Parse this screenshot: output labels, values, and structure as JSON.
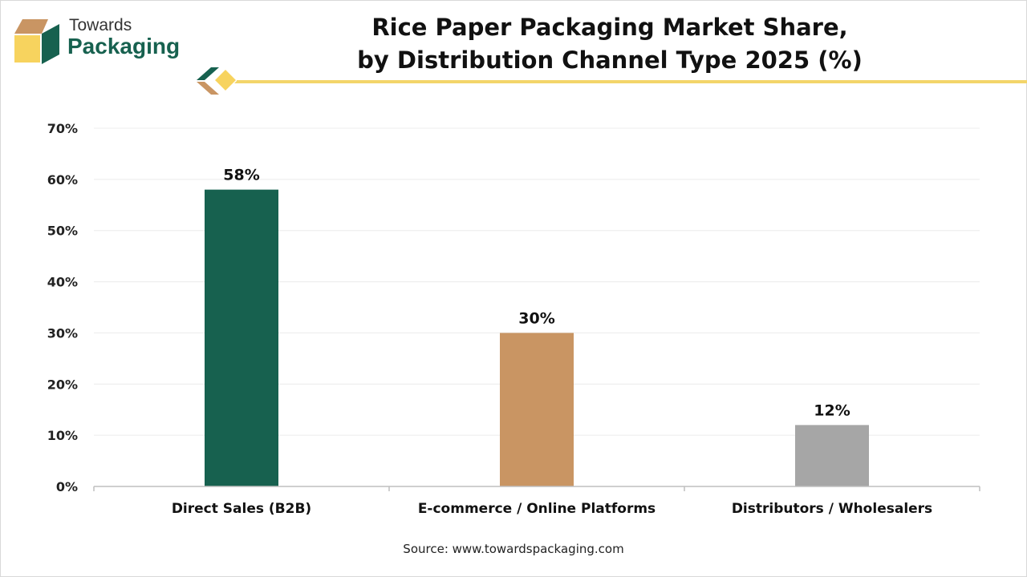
{
  "brand": {
    "line1": "Towards",
    "line2": "Packaging"
  },
  "header": {
    "title_line1": "Rice Paper Packaging Market Share,",
    "title_line2": "by Distribution Channel Type 2025 (%)"
  },
  "source": "Source: www.towardspackaging.com",
  "colors": {
    "accent_line": "#f3d56a",
    "brand_green": "#17614f"
  },
  "chart_data": {
    "type": "bar",
    "title": "Rice Paper Packaging Market Share, by Distribution Channel Type 2025 (%)",
    "categories": [
      "Direct Sales (B2B)",
      "E-commerce / Online Platforms",
      "Distributors / Wholesalers"
    ],
    "values": [
      58,
      30,
      12
    ],
    "value_labels": [
      "58%",
      "30%",
      "12%"
    ],
    "bar_colors": [
      "#17614f",
      "#c99563",
      "#a6a6a6"
    ],
    "ylim": [
      0,
      70
    ],
    "yticks": [
      0,
      10,
      20,
      30,
      40,
      50,
      60,
      70
    ],
    "ytick_labels": [
      "0%",
      "10%",
      "20%",
      "30%",
      "40%",
      "50%",
      "60%",
      "70%"
    ],
    "grid": true,
    "legend": false
  }
}
